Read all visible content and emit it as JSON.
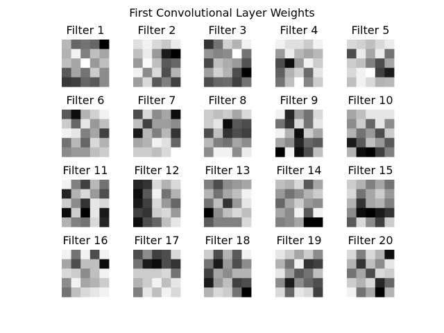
{
  "figure": {
    "title": "First Convolutional Layer Weights"
  },
  "chart_data": {
    "type": "heatmap",
    "colormap": "grayscale (0 = black, 1 = white)",
    "title": "First Convolutional Layer Weights",
    "grid": false,
    "layout": {
      "rows": 4,
      "cols": 5
    },
    "panels": [
      {
        "title": "Filter 1",
        "values": [
          [
            0.72,
            0.4,
            0.45,
            0.4,
            0.0
          ],
          [
            0.7,
            0.95,
            0.5,
            0.75,
            0.65
          ],
          [
            0.75,
            0.65,
            1.0,
            0.6,
            0.75
          ],
          [
            0.35,
            0.65,
            0.45,
            0.8,
            0.55
          ],
          [
            0.22,
            0.25,
            0.4,
            0.35,
            0.55
          ]
        ]
      },
      {
        "title": "Filter 2",
        "values": [
          [
            0.88,
            0.95,
            0.85,
            0.78,
            0.92
          ],
          [
            0.75,
            0.92,
            0.6,
            0.1,
            0.0
          ],
          [
            0.6,
            0.98,
            0.75,
            0.35,
            0.4
          ],
          [
            0.95,
            0.55,
            0.85,
            0.3,
            0.7
          ],
          [
            0.62,
            0.85,
            0.35,
            0.5,
            0.25
          ]
        ]
      },
      {
        "title": "Filter 3",
        "values": [
          [
            0.2,
            0.45,
            0.82,
            0.7,
            0.95
          ],
          [
            0.58,
            0.52,
            0.55,
            1.0,
            0.45
          ],
          [
            0.28,
            0.75,
            0.68,
            0.6,
            0.32
          ],
          [
            0.62,
            0.82,
            0.7,
            0.3,
            0.0
          ],
          [
            0.3,
            0.4,
            0.42,
            0.25,
            0.45
          ]
        ]
      },
      {
        "title": "Filter 4",
        "values": [
          [
            0.95,
            0.88,
            0.88,
            0.8,
            0.95
          ],
          [
            0.6,
            0.92,
            0.72,
            0.65,
            0.72
          ],
          [
            0.3,
            0.05,
            0.6,
            0.95,
            0.8
          ],
          [
            0.38,
            0.7,
            0.82,
            0.42,
            0.9
          ],
          [
            0.45,
            0.75,
            1.0,
            0.52,
            0.8
          ]
        ]
      },
      {
        "title": "Filter 5",
        "values": [
          [
            0.85,
            0.82,
            0.75,
            0.85,
            0.92
          ],
          [
            0.3,
            0.92,
            0.65,
            0.92,
            0.45
          ],
          [
            0.8,
            0.75,
            0.5,
            0.3,
            0.65
          ],
          [
            0.85,
            0.95,
            1.0,
            0.25,
            0.1
          ],
          [
            0.75,
            0.95,
            0.85,
            0.7,
            0.72
          ]
        ]
      },
      {
        "title": "Filter 6",
        "values": [
          [
            0.35,
            0.05,
            0.7,
            0.82,
            0.95
          ],
          [
            0.8,
            0.4,
            0.9,
            0.6,
            0.75
          ],
          [
            0.95,
            0.9,
            0.5,
            0.65,
            0.25
          ],
          [
            0.45,
            0.72,
            0.4,
            0.85,
            0.7
          ],
          [
            0.55,
            0.6,
            0.6,
            0.75,
            0.8
          ]
        ]
      },
      {
        "title": "Filter 7",
        "values": [
          [
            0.3,
            0.85,
            0.55,
            0.65,
            0.05
          ],
          [
            0.75,
            0.25,
            0.62,
            0.62,
            0.55
          ],
          [
            0.1,
            0.72,
            0.5,
            0.72,
            0.2
          ],
          [
            0.65,
            0.7,
            0.95,
            0.88,
            0.4
          ],
          [
            0.8,
            0.8,
            0.75,
            0.85,
            1.0
          ]
        ]
      },
      {
        "title": "Filter 8",
        "values": [
          [
            0.8,
            0.75,
            0.8,
            0.65,
            0.85
          ],
          [
            0.8,
            0.9,
            0.05,
            0.35,
            0.3
          ],
          [
            0.3,
            0.75,
            0.2,
            0.3,
            0.25
          ],
          [
            0.72,
            0.5,
            0.45,
            0.65,
            0.55
          ],
          [
            0.55,
            0.95,
            0.95,
            0.55,
            0.92
          ]
        ]
      },
      {
        "title": "Filter 9",
        "values": [
          [
            0.95,
            0.15,
            0.6,
            0.45,
            0.85
          ],
          [
            0.45,
            0.2,
            0.85,
            0.45,
            0.9
          ],
          [
            0.95,
            0.7,
            0.05,
            0.8,
            0.65
          ],
          [
            0.65,
            0.55,
            0.15,
            0.4,
            0.35
          ],
          [
            0.0,
            0.95,
            0.05,
            0.3,
            0.75
          ]
        ]
      },
      {
        "title": "Filter 10",
        "values": [
          [
            0.65,
            0.75,
            0.9,
            0.9,
            0.9
          ],
          [
            0.55,
            0.8,
            0.4,
            0.9,
            0.55
          ],
          [
            0.7,
            0.45,
            0.6,
            0.3,
            0.8
          ],
          [
            0.1,
            0.35,
            0.75,
            0.6,
            0.35
          ],
          [
            0.7,
            0.05,
            0.0,
            0.25,
            0.5
          ]
        ]
      },
      {
        "title": "Filter 11",
        "values": [
          [
            0.95,
            0.5,
            0.25,
            0.72,
            0.45
          ],
          [
            0.15,
            0.7,
            0.85,
            0.6,
            0.3
          ],
          [
            0.8,
            0.55,
            0.2,
            0.9,
            0.85
          ],
          [
            0.05,
            0.8,
            0.0,
            0.9,
            0.1
          ],
          [
            0.7,
            0.5,
            0.45,
            0.85,
            0.15
          ]
        ]
      },
      {
        "title": "Filter 12",
        "values": [
          [
            0.15,
            0.2,
            0.85,
            0.7,
            0.85
          ],
          [
            0.05,
            0.35,
            0.95,
            0.45,
            0.7
          ],
          [
            0.1,
            0.25,
            0.85,
            0.6,
            0.4
          ],
          [
            0.25,
            0.2,
            0.8,
            0.85,
            0.6
          ],
          [
            0.05,
            0.3,
            0.4,
            0.75,
            0.9
          ]
        ]
      },
      {
        "title": "Filter 13",
        "values": [
          [
            0.5,
            0.3,
            0.55,
            0.6,
            0.65
          ],
          [
            0.7,
            0.45,
            0.65,
            0.75,
            0.95
          ],
          [
            0.45,
            0.75,
            0.2,
            0.6,
            0.9
          ],
          [
            0.0,
            0.55,
            0.75,
            0.85,
            0.75
          ],
          [
            0.35,
            0.5,
            0.5,
            0.5,
            0.85
          ]
        ]
      },
      {
        "title": "Filter 14",
        "values": [
          [
            0.75,
            0.7,
            0.85,
            0.35,
            0.65
          ],
          [
            0.6,
            0.45,
            0.55,
            0.7,
            0.8
          ],
          [
            0.4,
            0.65,
            0.8,
            0.6,
            0.55
          ],
          [
            0.65,
            0.55,
            0.95,
            0.35,
            0.95
          ],
          [
            0.5,
            0.55,
            0.65,
            0.0,
            0.0
          ]
        ]
      },
      {
        "title": "Filter 15",
        "values": [
          [
            0.8,
            0.7,
            0.5,
            0.65,
            0.45
          ],
          [
            0.85,
            0.45,
            0.65,
            0.8,
            0.6
          ],
          [
            0.7,
            0.2,
            0.65,
            0.7,
            0.5
          ],
          [
            0.55,
            0.05,
            0.0,
            0.1,
            0.2
          ],
          [
            0.35,
            0.85,
            0.55,
            0.25,
            0.8
          ]
        ]
      },
      {
        "title": "Filter 16",
        "values": [
          [
            0.95,
            0.45,
            0.95,
            0.3,
            0.95
          ],
          [
            0.65,
            0.3,
            0.75,
            0.75,
            0.05
          ],
          [
            0.85,
            0.8,
            0.55,
            0.75,
            0.95
          ],
          [
            0.55,
            0.95,
            0.65,
            0.7,
            0.8
          ],
          [
            0.45,
            0.75,
            0.85,
            0.9,
            0.95
          ]
        ]
      },
      {
        "title": "Filter 17",
        "values": [
          [
            0.3,
            0.55,
            0.25,
            0.3,
            0.85
          ],
          [
            0.45,
            0.1,
            0.05,
            0.3,
            0.2
          ],
          [
            0.8,
            0.8,
            0.8,
            0.85,
            0.45
          ],
          [
            0.7,
            0.8,
            0.95,
            0.75,
            0.9
          ],
          [
            0.5,
            0.9,
            0.75,
            0.95,
            0.85
          ]
        ]
      },
      {
        "title": "Filter 18",
        "values": [
          [
            0.8,
            0.3,
            0.7,
            0.35,
            0.95
          ],
          [
            0.45,
            0.1,
            0.6,
            0.3,
            0.55
          ],
          [
            0.25,
            0.65,
            0.55,
            0.7,
            0.7
          ],
          [
            0.1,
            0.6,
            0.75,
            0.25,
            0.3
          ],
          [
            0.7,
            0.85,
            0.8,
            0.45,
            0.0
          ]
        ]
      },
      {
        "title": "Filter 19",
        "values": [
          [
            0.9,
            0.8,
            0.65,
            0.8,
            0.55
          ],
          [
            0.7,
            0.45,
            0.95,
            0.2,
            0.25
          ],
          [
            0.9,
            0.6,
            0.35,
            0.45,
            0.75
          ],
          [
            0.55,
            0.1,
            0.55,
            0.4,
            0.3
          ],
          [
            0.85,
            0.4,
            0.9,
            0.85,
            0.25
          ]
        ]
      },
      {
        "title": "Filter 20",
        "values": [
          [
            0.85,
            0.5,
            0.85,
            0.7,
            0.05
          ],
          [
            0.7,
            0.2,
            0.75,
            0.55,
            0.9
          ],
          [
            0.45,
            0.65,
            0.3,
            0.85,
            0.8
          ],
          [
            0.8,
            0.7,
            0.85,
            0.15,
            0.4
          ],
          [
            0.95,
            0.45,
            0.65,
            0.0,
            0.7
          ]
        ]
      }
    ]
  }
}
